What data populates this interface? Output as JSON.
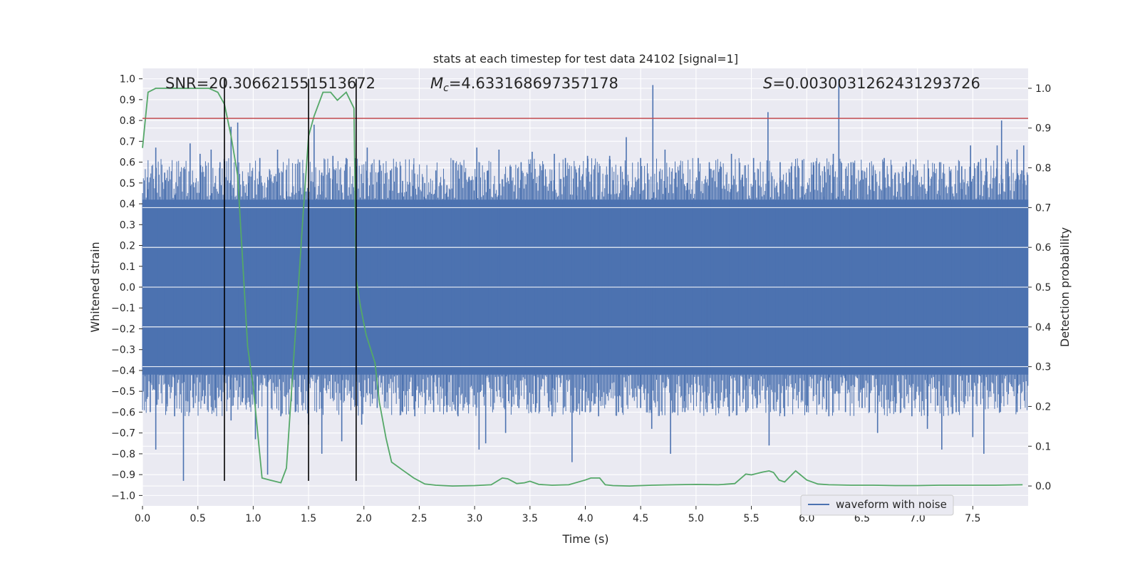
{
  "chart_data": {
    "type": "line",
    "title": "stats at each timestep for test data 24102 [signal=1]",
    "xlabel": "Time (s)",
    "ylabel": "Whitened strain",
    "ylabel_right": "Detection probability",
    "xlim": [
      0.0,
      8.0
    ],
    "ylim": [
      -1.05,
      1.05
    ],
    "ylim_right": [
      -0.05,
      1.05
    ],
    "x_ticks": [
      "0.0",
      "0.5",
      "1.0",
      "1.5",
      "2.0",
      "2.5",
      "3.0",
      "3.5",
      "4.0",
      "4.5",
      "5.0",
      "5.5",
      "6.0",
      "6.5",
      "7.0",
      "7.5"
    ],
    "y_ticks": [
      "1.0",
      "0.9",
      "0.8",
      "0.7",
      "0.6",
      "0.5",
      "0.4",
      "0.3",
      "0.2",
      "0.1",
      "0.0",
      "−0.1",
      "−0.2",
      "−0.3",
      "−0.4",
      "−0.5",
      "−0.6",
      "−0.7",
      "−0.8",
      "−0.9",
      "−1.0"
    ],
    "y_ticks_right": [
      "1.0",
      "0.9",
      "0.8",
      "0.7",
      "0.6",
      "0.5",
      "0.4",
      "0.3",
      "0.2",
      "0.1",
      "0.0"
    ],
    "annotations": {
      "snr": "SNR=20.306621551513672",
      "mc_symbol": "M",
      "mc_sub": "c",
      "mc_value": "=4.633168697357178",
      "s_symbol": "S",
      "s_value": "=0.0030031262431293726"
    },
    "legend": {
      "label": "waveform with noise",
      "placement": "lower-right"
    },
    "grid": true,
    "threshold_line_y": 0.81,
    "vertical_lines_x": [
      0.74,
      1.5,
      1.93
    ],
    "waveform": {
      "name": "waveform with noise",
      "core_amplitude": 0.42,
      "spikes": [
        {
          "x": 0.05,
          "y": 0.47
        },
        {
          "x": 0.12,
          "y": 0.67
        },
        {
          "x": 0.2,
          "y": 0.55
        },
        {
          "x": 0.3,
          "y": 0.45
        },
        {
          "x": 0.43,
          "y": 0.69
        },
        {
          "x": 0.52,
          "y": 0.64
        },
        {
          "x": 0.62,
          "y": 0.66
        },
        {
          "x": 0.7,
          "y": 0.6
        },
        {
          "x": 0.8,
          "y": 0.77
        },
        {
          "x": 0.86,
          "y": 0.79
        },
        {
          "x": 0.96,
          "y": 0.5
        },
        {
          "x": 1.06,
          "y": 0.62
        },
        {
          "x": 1.15,
          "y": 0.56
        },
        {
          "x": 1.22,
          "y": 0.66
        },
        {
          "x": 1.3,
          "y": 0.46
        },
        {
          "x": 1.42,
          "y": 0.6
        },
        {
          "x": 1.55,
          "y": 0.78
        },
        {
          "x": 1.62,
          "y": 0.55
        },
        {
          "x": 1.72,
          "y": 0.63
        },
        {
          "x": 1.84,
          "y": 0.62
        },
        {
          "x": 2.03,
          "y": 0.67
        },
        {
          "x": 2.14,
          "y": 0.61
        },
        {
          "x": 2.24,
          "y": 0.56
        },
        {
          "x": 2.35,
          "y": 0.51
        },
        {
          "x": 2.45,
          "y": 0.59
        },
        {
          "x": 2.55,
          "y": 0.5
        },
        {
          "x": 2.65,
          "y": 0.56
        },
        {
          "x": 2.75,
          "y": 0.49
        },
        {
          "x": 2.85,
          "y": 0.56
        },
        {
          "x": 2.95,
          "y": 0.53
        },
        {
          "x": 3.02,
          "y": 0.67
        },
        {
          "x": 3.12,
          "y": 0.56
        },
        {
          "x": 3.22,
          "y": 0.66
        },
        {
          "x": 3.32,
          "y": 0.58
        },
        {
          "x": 3.42,
          "y": 0.6
        },
        {
          "x": 3.52,
          "y": 0.65
        },
        {
          "x": 3.62,
          "y": 0.59
        },
        {
          "x": 3.72,
          "y": 0.64
        },
        {
          "x": 3.82,
          "y": 0.62
        },
        {
          "x": 3.92,
          "y": 0.55
        },
        {
          "x": 4.02,
          "y": 0.63
        },
        {
          "x": 4.12,
          "y": 0.55
        },
        {
          "x": 4.22,
          "y": 0.63
        },
        {
          "x": 4.32,
          "y": 0.58
        },
        {
          "x": 4.37,
          "y": 0.72
        },
        {
          "x": 4.5,
          "y": 0.62
        },
        {
          "x": 4.61,
          "y": 0.97
        },
        {
          "x": 4.72,
          "y": 0.66
        },
        {
          "x": 4.82,
          "y": 0.55
        },
        {
          "x": 4.92,
          "y": 0.5
        },
        {
          "x": 5.02,
          "y": 0.62
        },
        {
          "x": 5.12,
          "y": 0.6
        },
        {
          "x": 5.22,
          "y": 0.58
        },
        {
          "x": 5.32,
          "y": 0.64
        },
        {
          "x": 5.42,
          "y": 0.54
        },
        {
          "x": 5.52,
          "y": 0.62
        },
        {
          "x": 5.65,
          "y": 0.84
        },
        {
          "x": 5.76,
          "y": 0.6
        },
        {
          "x": 5.86,
          "y": 0.58
        },
        {
          "x": 5.96,
          "y": 0.61
        },
        {
          "x": 6.06,
          "y": 0.6
        },
        {
          "x": 6.16,
          "y": 0.58
        },
        {
          "x": 6.24,
          "y": 0.64
        },
        {
          "x": 6.29,
          "y": 1.0
        },
        {
          "x": 6.4,
          "y": 0.6
        },
        {
          "x": 6.5,
          "y": 0.56
        },
        {
          "x": 6.6,
          "y": 0.58
        },
        {
          "x": 6.7,
          "y": 0.62
        },
        {
          "x": 6.8,
          "y": 0.55
        },
        {
          "x": 6.9,
          "y": 0.6
        },
        {
          "x": 7.0,
          "y": 0.56
        },
        {
          "x": 7.1,
          "y": 0.57
        },
        {
          "x": 7.2,
          "y": 0.6
        },
        {
          "x": 7.3,
          "y": 0.55
        },
        {
          "x": 7.4,
          "y": 0.58
        },
        {
          "x": 7.48,
          "y": 0.68
        },
        {
          "x": 7.55,
          "y": 0.6
        },
        {
          "x": 7.62,
          "y": 0.62
        },
        {
          "x": 7.72,
          "y": 0.68
        },
        {
          "x": 7.76,
          "y": 0.8
        },
        {
          "x": 7.82,
          "y": 0.6
        },
        {
          "x": 7.9,
          "y": 0.66
        },
        {
          "x": 7.96,
          "y": 0.68
        },
        {
          "x": 0.03,
          "y": -0.55
        },
        {
          "x": 0.07,
          "y": -0.6
        },
        {
          "x": 0.12,
          "y": -0.78
        },
        {
          "x": 0.22,
          "y": -0.56
        },
        {
          "x": 0.29,
          "y": -0.62
        },
        {
          "x": 0.37,
          "y": -0.93
        },
        {
          "x": 0.46,
          "y": -0.58
        },
        {
          "x": 0.56,
          "y": -0.56
        },
        {
          "x": 0.66,
          "y": -0.58
        },
        {
          "x": 0.8,
          "y": -0.64
        },
        {
          "x": 0.9,
          "y": -0.55
        },
        {
          "x": 1.02,
          "y": -0.73
        },
        {
          "x": 1.13,
          "y": -0.9
        },
        {
          "x": 1.25,
          "y": -0.62
        },
        {
          "x": 1.38,
          "y": -0.6
        },
        {
          "x": 1.5,
          "y": -0.66
        },
        {
          "x": 1.62,
          "y": -0.8
        },
        {
          "x": 1.8,
          "y": -0.74
        },
        {
          "x": 1.98,
          "y": -0.66
        },
        {
          "x": 2.12,
          "y": -0.58
        },
        {
          "x": 2.35,
          "y": -0.6
        },
        {
          "x": 2.46,
          "y": -0.62
        },
        {
          "x": 2.63,
          "y": -0.6
        },
        {
          "x": 2.75,
          "y": -0.6
        },
        {
          "x": 2.85,
          "y": -0.62
        },
        {
          "x": 3.04,
          "y": -0.78
        },
        {
          "x": 3.1,
          "y": -0.75
        },
        {
          "x": 3.28,
          "y": -0.7
        },
        {
          "x": 3.4,
          "y": -0.58
        },
        {
          "x": 3.55,
          "y": -0.6
        },
        {
          "x": 3.7,
          "y": -0.62
        },
        {
          "x": 3.88,
          "y": -0.84
        },
        {
          "x": 4.0,
          "y": -0.6
        },
        {
          "x": 4.12,
          "y": -0.62
        },
        {
          "x": 4.3,
          "y": -0.6
        },
        {
          "x": 4.5,
          "y": -0.58
        },
        {
          "x": 4.6,
          "y": -0.68
        },
        {
          "x": 4.77,
          "y": -0.8
        },
        {
          "x": 4.9,
          "y": -0.6
        },
        {
          "x": 5.1,
          "y": -0.6
        },
        {
          "x": 5.3,
          "y": -0.62
        },
        {
          "x": 5.45,
          "y": -0.6
        },
        {
          "x": 5.55,
          "y": -0.58
        },
        {
          "x": 5.66,
          "y": -0.76
        },
        {
          "x": 5.8,
          "y": -0.62
        },
        {
          "x": 6.0,
          "y": -0.6
        },
        {
          "x": 6.2,
          "y": -0.62
        },
        {
          "x": 6.35,
          "y": -0.6
        },
        {
          "x": 6.5,
          "y": -0.58
        },
        {
          "x": 6.64,
          "y": -0.7
        },
        {
          "x": 6.8,
          "y": -0.6
        },
        {
          "x": 6.95,
          "y": -0.62
        },
        {
          "x": 7.09,
          "y": -0.68
        },
        {
          "x": 7.22,
          "y": -0.78
        },
        {
          "x": 7.35,
          "y": -0.6
        },
        {
          "x": 7.5,
          "y": -0.72
        },
        {
          "x": 7.6,
          "y": -0.8
        },
        {
          "x": 7.75,
          "y": -0.6
        },
        {
          "x": 7.9,
          "y": -0.6
        }
      ]
    },
    "probability_series": {
      "name": "detection probability",
      "color": "#55a868",
      "x": [
        0.0,
        0.05,
        0.12,
        0.2,
        0.4,
        0.6,
        0.68,
        0.74,
        0.8,
        0.86,
        0.95,
        1.0,
        1.08,
        1.15,
        1.25,
        1.3,
        1.38,
        1.45,
        1.5,
        1.55,
        1.63,
        1.7,
        1.76,
        1.84,
        1.91,
        1.93,
        1.97,
        2.02,
        2.1,
        2.14,
        2.2,
        2.25,
        2.35,
        2.45,
        2.55,
        2.65,
        2.8,
        3.0,
        3.15,
        3.25,
        3.3,
        3.38,
        3.45,
        3.5,
        3.58,
        3.7,
        3.85,
        4.0,
        4.05,
        4.13,
        4.18,
        4.25,
        4.4,
        4.6,
        4.8,
        5.0,
        5.2,
        5.35,
        5.45,
        5.5,
        5.6,
        5.66,
        5.7,
        5.75,
        5.8,
        5.9,
        6.0,
        6.1,
        6.2,
        6.4,
        6.6,
        6.8,
        7.0,
        7.2,
        7.5,
        7.7,
        7.95
      ],
      "y": [
        0.85,
        0.99,
        1.0,
        1.0,
        1.0,
        1.0,
        0.99,
        0.96,
        0.88,
        0.78,
        0.35,
        0.25,
        0.02,
        0.015,
        0.008,
        0.045,
        0.38,
        0.68,
        0.88,
        0.93,
        0.99,
        0.99,
        0.97,
        0.99,
        0.95,
        0.52,
        0.45,
        0.38,
        0.31,
        0.21,
        0.12,
        0.06,
        0.04,
        0.02,
        0.005,
        0.002,
        0.0,
        0.001,
        0.003,
        0.02,
        0.018,
        0.006,
        0.008,
        0.012,
        0.004,
        0.002,
        0.003,
        0.015,
        0.02,
        0.02,
        0.003,
        0.001,
        0.0,
        0.002,
        0.003,
        0.004,
        0.003,
        0.006,
        0.03,
        0.028,
        0.035,
        0.038,
        0.034,
        0.015,
        0.01,
        0.038,
        0.015,
        0.005,
        0.003,
        0.002,
        0.002,
        0.001,
        0.001,
        0.002,
        0.002,
        0.002,
        0.003
      ]
    },
    "colors": {
      "plot_background": "#eaeaf2",
      "grid": "#ffffff",
      "waveform": "#4c72b0",
      "probability": "#55a868",
      "threshold": "#c44e52",
      "vertical_lines": "#000000"
    }
  }
}
